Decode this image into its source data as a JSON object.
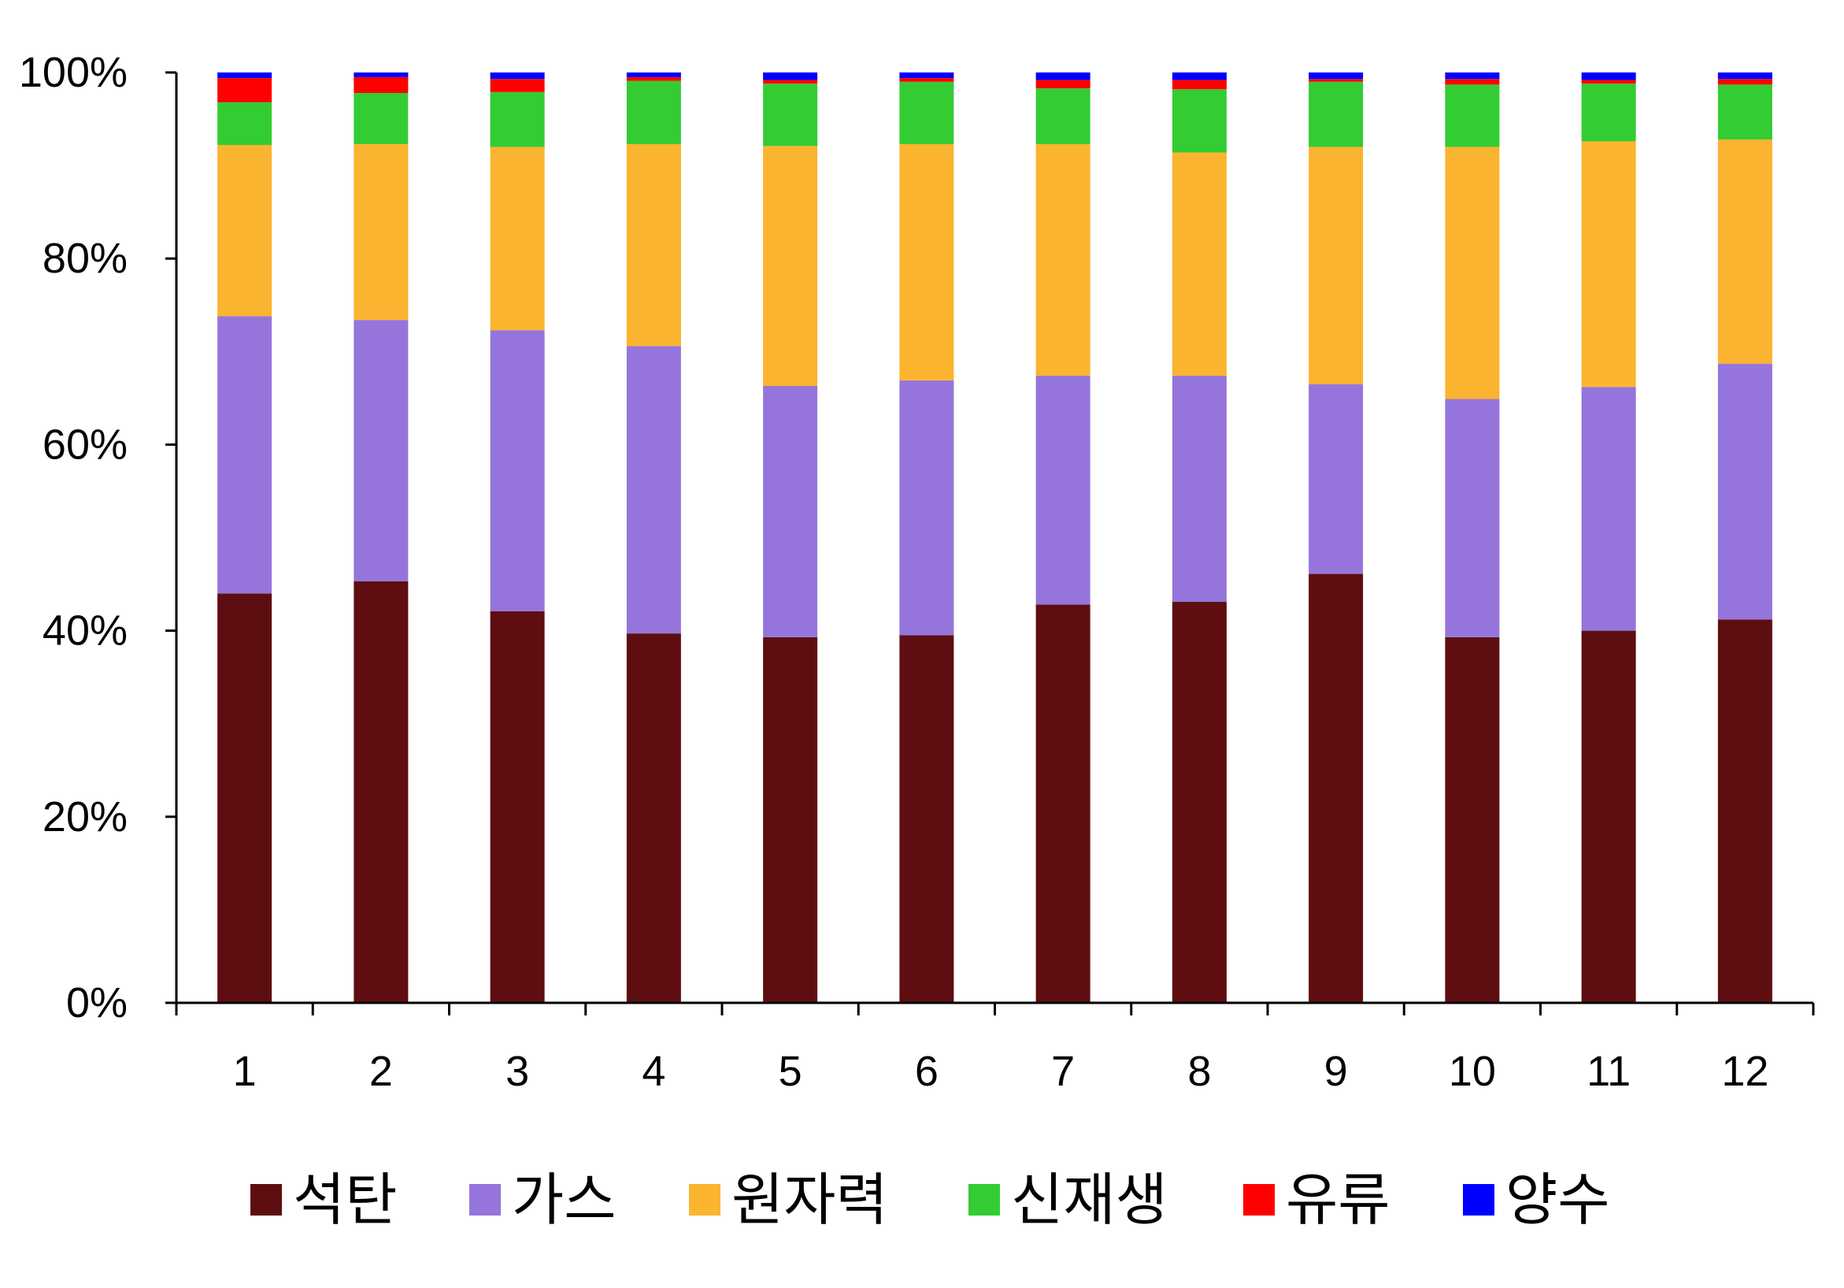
{
  "chart_data": {
    "type": "bar",
    "stacked": true,
    "percent_stacked": true,
    "categories": [
      "1",
      "2",
      "3",
      "4",
      "5",
      "6",
      "7",
      "8",
      "9",
      "10",
      "11",
      "12"
    ],
    "y_ticks": [
      "0%",
      "20%",
      "40%",
      "60%",
      "80%",
      "100%"
    ],
    "ylim": [
      0,
      100
    ],
    "grid": false,
    "legend_position": "bottom",
    "series": [
      {
        "name": "석탄",
        "color": "#5e0e10",
        "values": [
          44.0,
          45.3,
          42.1,
          39.7,
          39.3,
          39.5,
          42.8,
          43.1,
          46.1,
          39.3,
          40.0,
          41.2
        ]
      },
      {
        "name": "가스",
        "color": "#9575db",
        "values": [
          29.8,
          28.1,
          30.2,
          30.9,
          27.0,
          27.4,
          24.6,
          24.3,
          20.4,
          25.6,
          26.2,
          27.5
        ]
      },
      {
        "name": "원자력",
        "color": "#fbb430",
        "values": [
          18.4,
          18.9,
          19.7,
          21.7,
          25.8,
          25.4,
          24.9,
          24.0,
          25.5,
          27.1,
          26.4,
          24.1
        ]
      },
      {
        "name": "신재생",
        "color": "#33cc33",
        "values": [
          4.6,
          5.5,
          5.9,
          6.8,
          6.7,
          6.7,
          6.0,
          6.8,
          7.0,
          6.7,
          6.2,
          5.9
        ]
      },
      {
        "name": "유류",
        "color": "#ff0000",
        "values": [
          2.6,
          1.7,
          1.4,
          0.4,
          0.4,
          0.4,
          0.9,
          1.0,
          0.3,
          0.6,
          0.4,
          0.6
        ]
      },
      {
        "name": "양수",
        "color": "#0000ff",
        "values": [
          0.6,
          0.5,
          0.7,
          0.5,
          0.8,
          0.6,
          0.8,
          0.8,
          0.7,
          0.7,
          0.8,
          0.7
        ]
      }
    ]
  }
}
